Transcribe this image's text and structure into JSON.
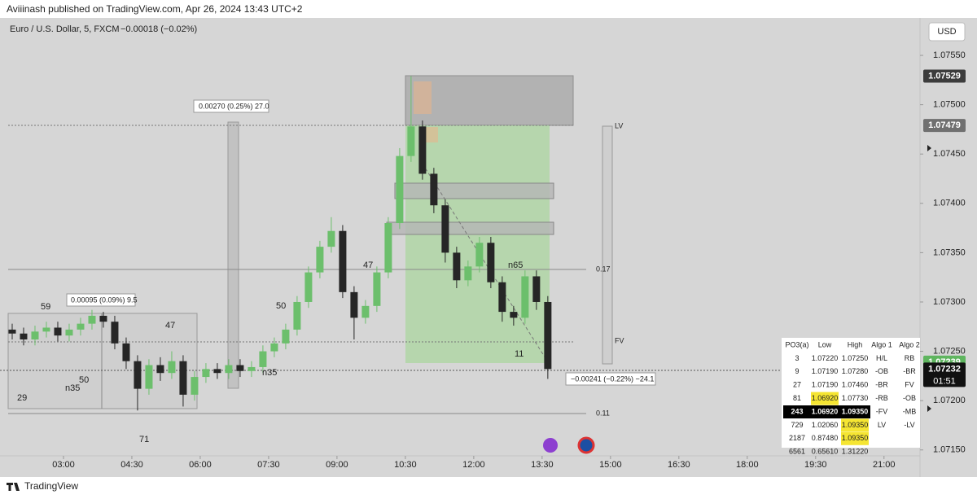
{
  "header": "Aviiinash published on TradingView.com, Apr 26, 2024 13:43 UTC+2",
  "footer": "TradingView",
  "chart_data": {
    "type": "candlestick",
    "title": "Euro / U.S. Dollar, 5, FXCM",
    "change": "−0.00018 (−0.02%)",
    "currency": "USD",
    "xlim": [
      1.786,
      21.79
    ],
    "xticks": [
      {
        "value": 3,
        "label": "03:00"
      },
      {
        "value": 4.5,
        "label": "04:30"
      },
      {
        "value": 6,
        "label": "06:00"
      },
      {
        "value": 7.5,
        "label": "07:30"
      },
      {
        "value": 9,
        "label": "09:00"
      },
      {
        "value": 10.5,
        "label": "10:30"
      },
      {
        "value": 12,
        "label": "12:00"
      },
      {
        "value": 13.5,
        "label": "13:30"
      },
      {
        "value": 15,
        "label": "15:00"
      },
      {
        "value": 16.5,
        "label": "16:30"
      },
      {
        "value": 18,
        "label": "18:00"
      },
      {
        "value": 19.5,
        "label": "19:30"
      },
      {
        "value": 21,
        "label": "21:00"
      }
    ],
    "ylim": [
      1.07144,
      1.07588
    ],
    "yticks": [
      {
        "value": 1.0715,
        "label": "1.07150"
      },
      {
        "value": 1.072,
        "label": "1.07200"
      },
      {
        "value": 1.0725,
        "label": "1.07250"
      },
      {
        "value": 1.073,
        "label": "1.07300"
      },
      {
        "value": 1.0735,
        "label": "1.07350"
      },
      {
        "value": 1.074,
        "label": "1.07400"
      },
      {
        "value": 1.0745,
        "label": "1.07450"
      },
      {
        "value": 1.075,
        "label": "1.07500"
      },
      {
        "value": 1.0755,
        "label": "1.07550"
      }
    ],
    "up_color": "#6cbf6c",
    "down_color": "#262626",
    "candles": {
      "x": [
        1.875,
        2.125,
        2.375,
        2.625,
        2.875,
        3.125,
        3.375,
        3.625,
        3.875,
        4.125,
        4.375,
        4.625,
        4.875,
        5.125,
        5.375,
        5.625,
        5.875,
        6.125,
        6.375,
        6.625,
        6.875,
        7.125,
        7.375,
        7.625,
        7.875,
        8.125,
        8.375,
        8.625,
        8.875,
        9.125,
        9.375,
        9.625,
        9.875,
        10.125,
        10.375,
        10.625,
        10.875,
        11.125,
        11.375,
        11.625,
        11.875,
        12.125,
        12.375,
        12.625,
        12.875,
        13.125,
        13.375,
        13.625
      ],
      "open": [
        1.07272,
        1.07268,
        1.07262,
        1.0727,
        1.07274,
        1.07266,
        1.07272,
        1.07278,
        1.07286,
        1.0728,
        1.07258,
        1.0724,
        1.07212,
        1.07236,
        1.07228,
        1.0724,
        1.07206,
        1.07224,
        1.07232,
        1.07228,
        1.07236,
        1.0723,
        1.07234,
        1.0725,
        1.07258,
        1.07272,
        1.073,
        1.0733,
        1.07356,
        1.07372,
        1.0731,
        1.07284,
        1.07296,
        1.0733,
        1.0738,
        1.07448,
        1.07478,
        1.0743,
        1.07398,
        1.0735,
        1.07322,
        1.07336,
        1.0736,
        1.0732,
        1.0729,
        1.07284,
        1.07326,
        1.073
      ],
      "high": [
        1.07278,
        1.07274,
        1.07276,
        1.0728,
        1.0728,
        1.07278,
        1.07284,
        1.07292,
        1.0729,
        1.07286,
        1.07264,
        1.07246,
        1.07242,
        1.07244,
        1.0725,
        1.07246,
        1.0723,
        1.07238,
        1.07238,
        1.07242,
        1.07242,
        1.0724,
        1.07256,
        1.07264,
        1.07278,
        1.07306,
        1.07336,
        1.07362,
        1.07386,
        1.07378,
        1.07316,
        1.07302,
        1.07336,
        1.07386,
        1.07456,
        1.07529,
        1.07484,
        1.07436,
        1.07404,
        1.07356,
        1.07342,
        1.07366,
        1.07366,
        1.07326,
        1.07296,
        1.07332,
        1.07332,
        1.07306
      ],
      "low": [
        1.07262,
        1.07256,
        1.07256,
        1.07264,
        1.0726,
        1.0726,
        1.07266,
        1.07272,
        1.07274,
        1.07252,
        1.07232,
        1.0719,
        1.07206,
        1.0722,
        1.07222,
        1.07194,
        1.072,
        1.07218,
        1.07222,
        1.07222,
        1.07224,
        1.07224,
        1.07228,
        1.07244,
        1.07252,
        1.07266,
        1.07294,
        1.07324,
        1.0735,
        1.07304,
        1.07262,
        1.07278,
        1.0729,
        1.07324,
        1.07374,
        1.07442,
        1.07424,
        1.0739,
        1.0734,
        1.07314,
        1.07316,
        1.0733,
        1.07314,
        1.0728,
        1.07276,
        1.07278,
        1.07292,
        1.07222
      ],
      "close": [
        1.07268,
        1.07262,
        1.0727,
        1.07274,
        1.07266,
        1.07272,
        1.07278,
        1.07286,
        1.0728,
        1.07258,
        1.0724,
        1.07212,
        1.07236,
        1.07228,
        1.0724,
        1.07206,
        1.07224,
        1.07232,
        1.07228,
        1.07236,
        1.0723,
        1.07234,
        1.0725,
        1.07258,
        1.07272,
        1.073,
        1.0733,
        1.07356,
        1.07372,
        1.0731,
        1.07284,
        1.07296,
        1.0733,
        1.0738,
        1.07448,
        1.07478,
        1.0743,
        1.07398,
        1.0735,
        1.07322,
        1.07336,
        1.0736,
        1.0732,
        1.0729,
        1.07284,
        1.07326,
        1.073,
        1.07232
      ]
    },
    "price_labels": [
      {
        "value": 1.07529,
        "color": "#3c3c3c"
      },
      {
        "value": 1.07479,
        "color": "#707070"
      },
      {
        "value": 1.07239,
        "color": "#5fb55f"
      },
      {
        "value": 1.07232,
        "color": "#111111"
      }
    ],
    "countdown": "01:51",
    "annotations": {
      "measure_1": "0.00270 (0.25%) 27.0",
      "measure_2": "0.00095 (0.09%) 9.5",
      "measure_3": "−0.00241 (−0.22%) −24.1",
      "n59": "59",
      "n47a": "47",
      "n50a": "50",
      "n35a": "n35",
      "n29": "29",
      "n71": "71",
      "n50b": "50",
      "n47b": "47",
      "n35b": "n35",
      "n65": "n65",
      "n11": "11",
      "lv": "LV",
      "fv": "FV",
      "level_1": "0.17",
      "level_2": "0.11"
    }
  },
  "table": {
    "header": [
      "PO3(a)",
      "Low",
      "High",
      "Algo 1",
      "Algo 2"
    ],
    "rows": [
      [
        "3",
        "1.07220",
        "1.07250",
        "H/L",
        "RB"
      ],
      [
        "9",
        "1.07190",
        "1.07280",
        "-OB",
        "-BR"
      ],
      [
        "27",
        "1.07190",
        "1.07460",
        "-BR",
        "FV"
      ],
      [
        "81",
        "1.06920",
        "1.07730",
        "-RB",
        "-OB"
      ],
      [
        "243",
        "1.06920",
        "1.09350",
        "-FV",
        "-MB"
      ],
      [
        "729",
        "1.02060",
        "1.09350",
        "LV",
        "-LV"
      ],
      [
        "2187",
        "0.87480",
        "1.09350"
      ],
      [
        "6561",
        "0.65610",
        "1.31220"
      ]
    ]
  }
}
